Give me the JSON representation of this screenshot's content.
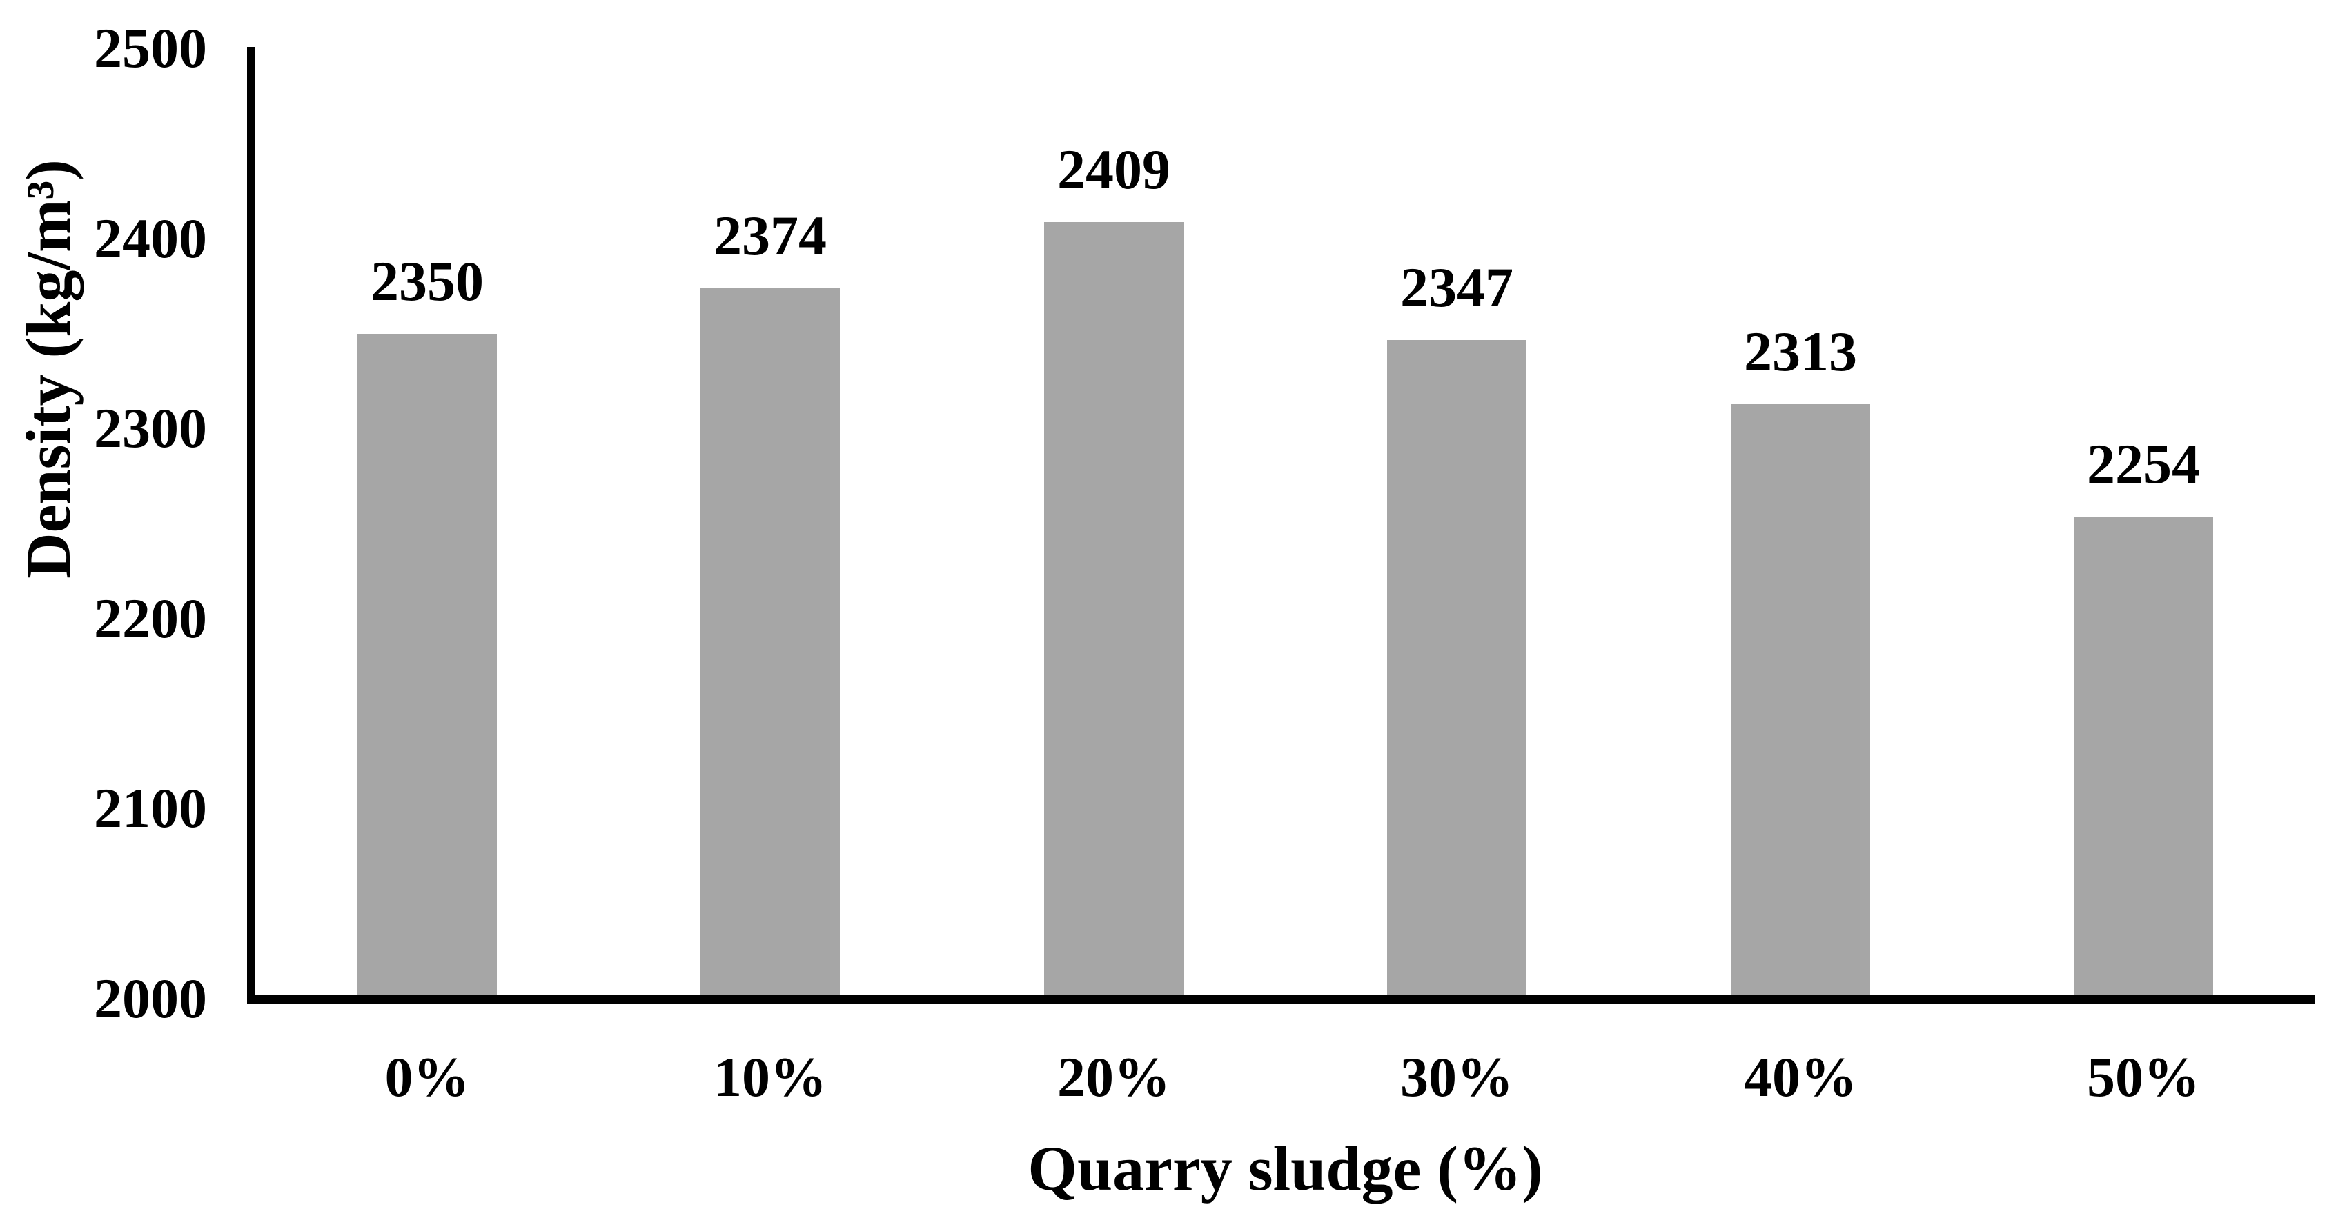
{
  "chart_data": {
    "type": "bar",
    "categories": [
      "0%",
      "10%",
      "20%",
      "30%",
      "40%",
      "50%"
    ],
    "values": [
      2350,
      2374,
      2409,
      2347,
      2313,
      2254
    ],
    "data_labels": [
      "2350",
      "2374",
      "2409",
      "2347",
      "2313",
      "2254"
    ],
    "title": "",
    "xlabel": "Quarry sludge (%)",
    "ylabel": "Density (kg/m³)",
    "ylim": [
      2000,
      2500
    ],
    "ytick_interval": 100,
    "yticks": [
      "2000",
      "2100",
      "2200",
      "2300",
      "2400",
      "2500"
    ],
    "grid": false,
    "legend": false,
    "bar_color": "#A6A6A6",
    "axis_color": "#000000",
    "text_color": "#000000",
    "background_color": "#FFFFFF"
  }
}
